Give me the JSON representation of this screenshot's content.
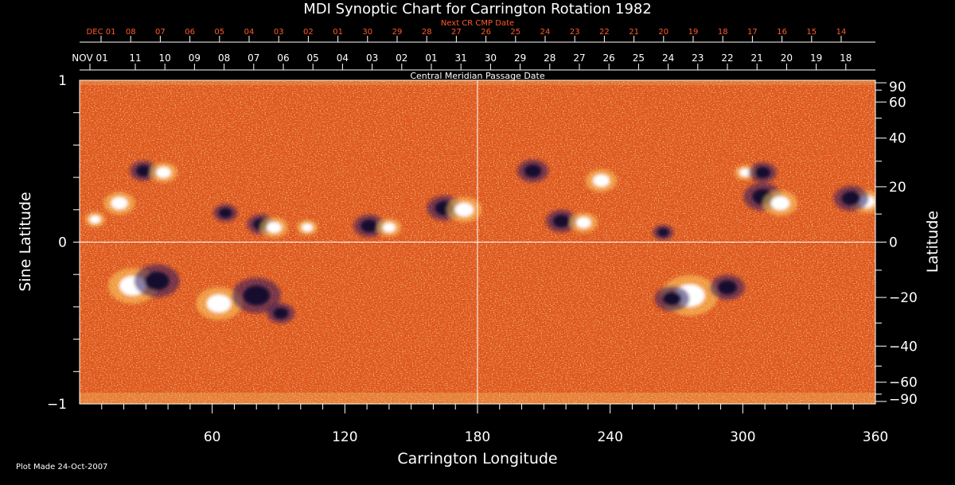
{
  "chart_data": {
    "type": "heatmap",
    "title": "MDI Synoptic Chart for Carrington Rotation 1982",
    "xlabel": "Carrington Longitude",
    "ylabel_left": "Sine Latitude",
    "ylabel_right": "Latitude",
    "top_axis_title_upper": "Next CR CMP Date",
    "top_axis_title_lower": "Central Meridian Passage Date",
    "xlim": [
      0,
      360
    ],
    "ylim": [
      -1,
      1
    ],
    "x_ticks": [
      60,
      120,
      180,
      240,
      300,
      360
    ],
    "y_ticks_left": [
      {
        "value": 1,
        "label": "1"
      },
      {
        "value": 0,
        "label": "0"
      },
      {
        "value": -1,
        "label": "−1"
      }
    ],
    "y_ticks_right": [
      "90",
      "60",
      "40",
      "20",
      "0",
      "−20",
      "−40",
      "−60",
      "−90"
    ],
    "y_ticks_right_deg": [
      90,
      60,
      40,
      20,
      0,
      -20,
      -40,
      -60,
      -90
    ],
    "cmp_dates_upper": [
      "DEC 01",
      "08",
      "07",
      "06",
      "05",
      "04",
      "03",
      "02",
      "01",
      "30",
      "29",
      "28",
      "27",
      "26",
      "25",
      "24",
      "23",
      "22",
      "21",
      "20",
      "19",
      "18",
      "17",
      "16",
      "15",
      "14"
    ],
    "cmp_dates_lower": [
      "NOV 01",
      "11",
      "10",
      "09",
      "08",
      "07",
      "06",
      "05",
      "04",
      "03",
      "02",
      "01",
      "31",
      "30",
      "29",
      "28",
      "27",
      "26",
      "25",
      "24",
      "23",
      "22",
      "21",
      "20",
      "19",
      "18"
    ],
    "colors": {
      "background": "#000000",
      "neutral_field": "#e0561a",
      "positive_polarity": "#ffffff",
      "negative_polarity": "#12082e",
      "upper_date_text": "#ff5a2a",
      "axes": "#ffffff"
    },
    "grid": false,
    "reference_lines": {
      "longitude": 180,
      "sine_latitude": 0
    },
    "active_regions": [
      {
        "lon": 7,
        "sinlat": 0.14,
        "polarity": "positive",
        "size": 0.6
      },
      {
        "lon": 29,
        "sinlat": 0.44,
        "polarity": "negative",
        "size": 0.8
      },
      {
        "lon": 38,
        "sinlat": 0.43,
        "polarity": "positive",
        "size": 0.8
      },
      {
        "lon": 18,
        "sinlat": 0.24,
        "polarity": "positive",
        "size": 0.9
      },
      {
        "lon": 24,
        "sinlat": -0.27,
        "polarity": "positive",
        "size": 1.4
      },
      {
        "lon": 35,
        "sinlat": -0.24,
        "polarity": "negative",
        "size": 1.3
      },
      {
        "lon": 63,
        "sinlat": -0.38,
        "polarity": "positive",
        "size": 1.3
      },
      {
        "lon": 80,
        "sinlat": -0.33,
        "polarity": "negative",
        "size": 1.4
      },
      {
        "lon": 91,
        "sinlat": -0.44,
        "polarity": "negative",
        "size": 0.8
      },
      {
        "lon": 66,
        "sinlat": 0.18,
        "polarity": "negative",
        "size": 0.7
      },
      {
        "lon": 82,
        "sinlat": 0.11,
        "polarity": "negative",
        "size": 0.8
      },
      {
        "lon": 88,
        "sinlat": 0.09,
        "polarity": "positive",
        "size": 0.8
      },
      {
        "lon": 103,
        "sinlat": 0.09,
        "polarity": "positive",
        "size": 0.6
      },
      {
        "lon": 131,
        "sinlat": 0.1,
        "polarity": "negative",
        "size": 0.9
      },
      {
        "lon": 140,
        "sinlat": 0.09,
        "polarity": "positive",
        "size": 0.7
      },
      {
        "lon": 165,
        "sinlat": 0.21,
        "polarity": "negative",
        "size": 1.0
      },
      {
        "lon": 174,
        "sinlat": 0.2,
        "polarity": "positive",
        "size": 1.0
      },
      {
        "lon": 205,
        "sinlat": 0.44,
        "polarity": "negative",
        "size": 0.9
      },
      {
        "lon": 218,
        "sinlat": 0.13,
        "polarity": "negative",
        "size": 0.9
      },
      {
        "lon": 228,
        "sinlat": 0.12,
        "polarity": "positive",
        "size": 0.8
      },
      {
        "lon": 236,
        "sinlat": 0.38,
        "polarity": "positive",
        "size": 0.9
      },
      {
        "lon": 264,
        "sinlat": 0.06,
        "polarity": "negative",
        "size": 0.6
      },
      {
        "lon": 276,
        "sinlat": -0.33,
        "polarity": "positive",
        "size": 1.6
      },
      {
        "lon": 268,
        "sinlat": -0.35,
        "polarity": "negative",
        "size": 1.0
      },
      {
        "lon": 293,
        "sinlat": -0.28,
        "polarity": "negative",
        "size": 1.0
      },
      {
        "lon": 301,
        "sinlat": 0.43,
        "polarity": "positive",
        "size": 0.6
      },
      {
        "lon": 309,
        "sinlat": 0.43,
        "polarity": "negative",
        "size": 0.8
      },
      {
        "lon": 309,
        "sinlat": 0.28,
        "polarity": "negative",
        "size": 1.1
      },
      {
        "lon": 317,
        "sinlat": 0.24,
        "polarity": "positive",
        "size": 1.0
      },
      {
        "lon": 356,
        "sinlat": 0.25,
        "polarity": "positive",
        "size": 0.9
      },
      {
        "lon": 349,
        "sinlat": 0.27,
        "polarity": "negative",
        "size": 1.0
      }
    ]
  },
  "footer": {
    "plot_made": "Plot Made 24-Oct-2007"
  }
}
